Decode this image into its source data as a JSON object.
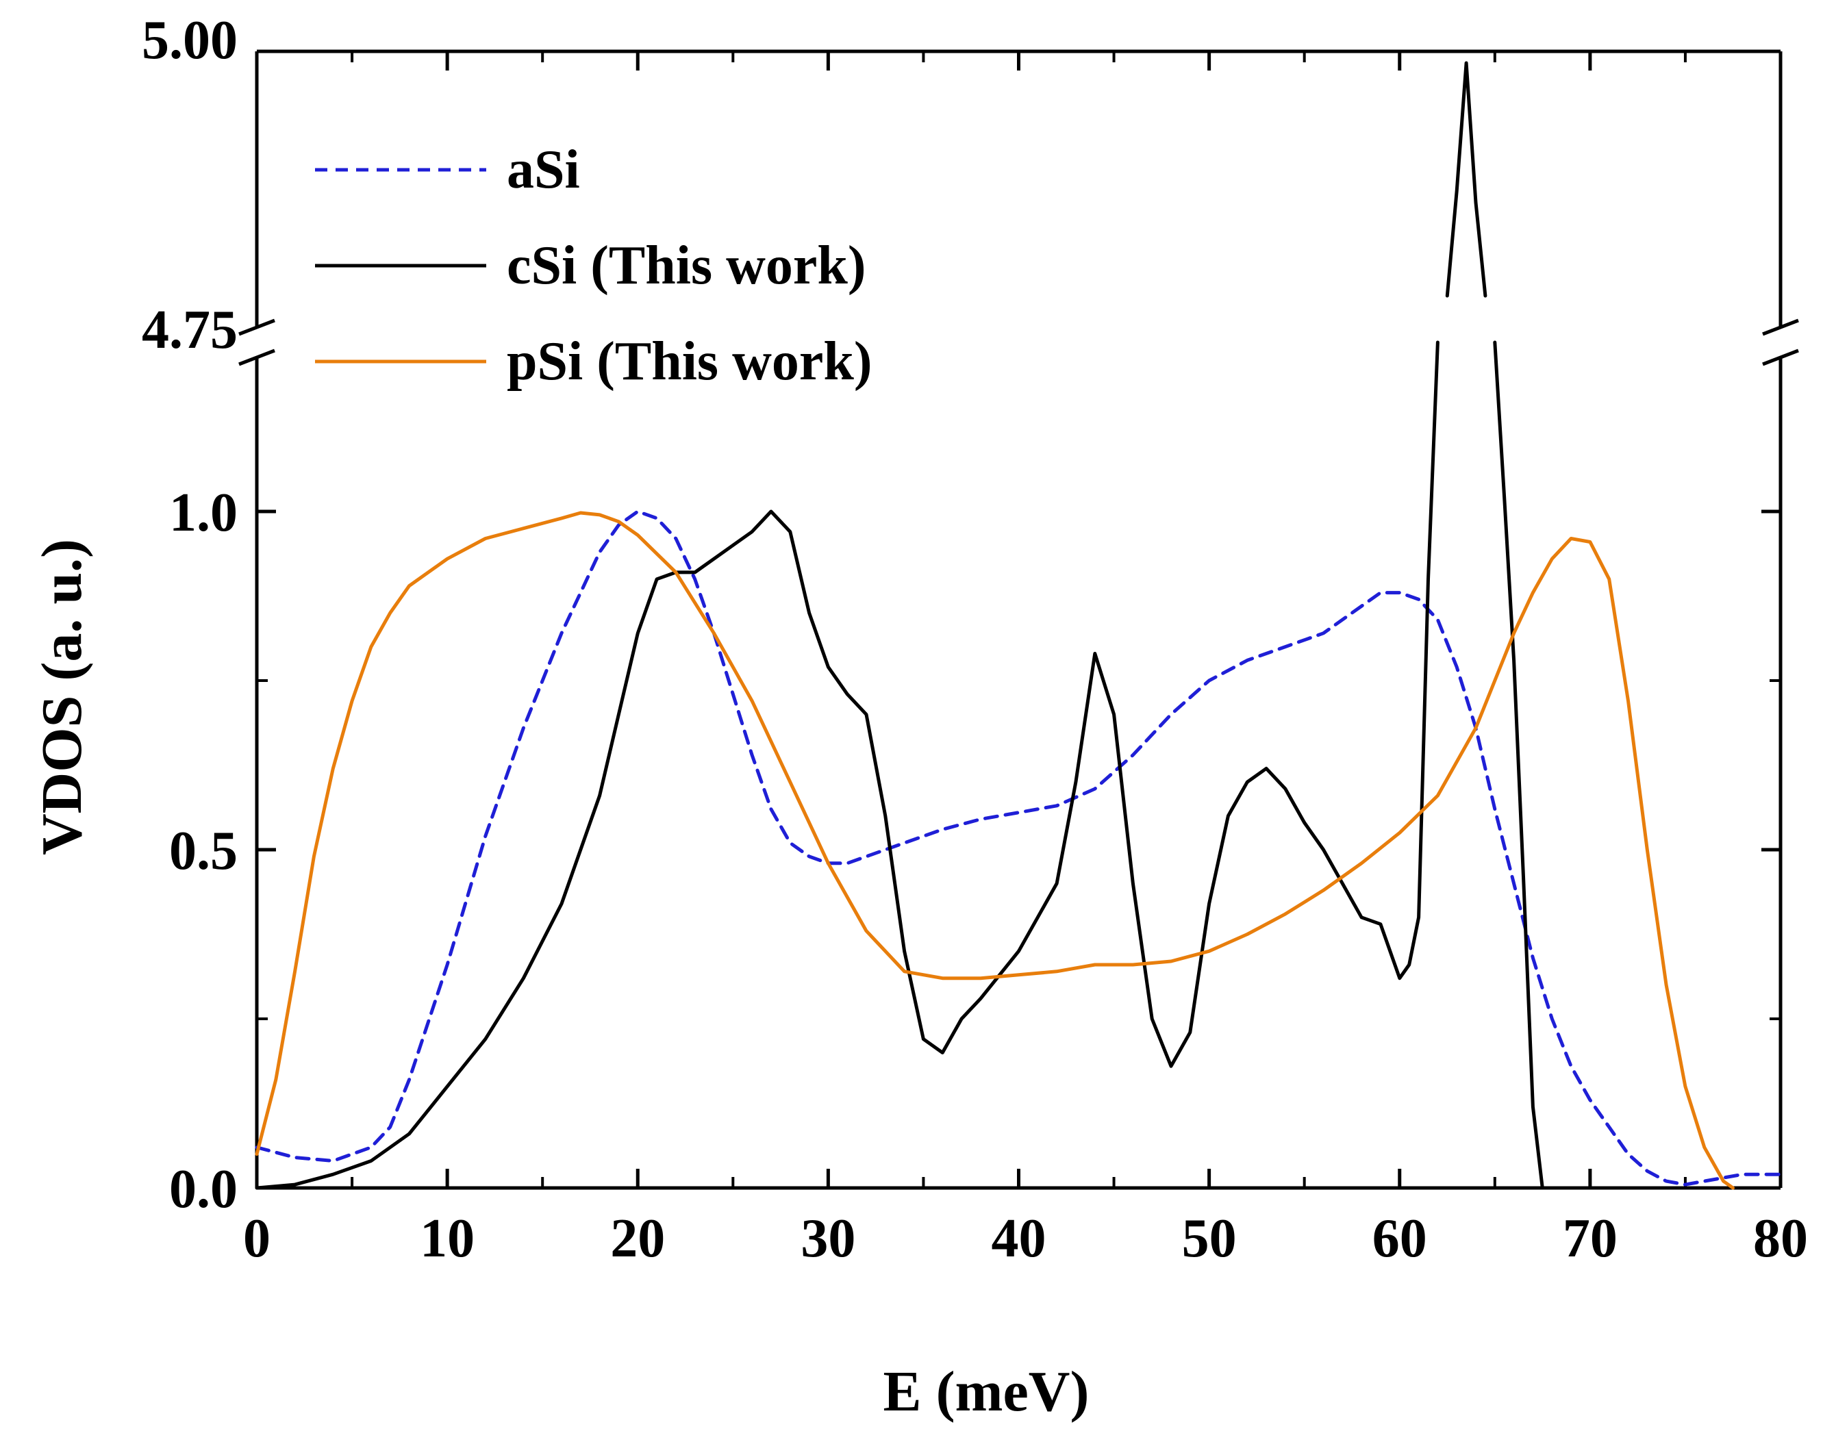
{
  "chart_data": {
    "type": "line",
    "title": "",
    "xlabel": "E (meV)",
    "ylabel": "VDOS (a. u.)",
    "xlim": [
      0,
      80
    ],
    "ylim_lower": [
      0,
      1.25
    ],
    "ylim_upper": [
      4.75,
      5.0
    ],
    "axis_break": {
      "from": 1.25,
      "to": 4.75
    },
    "x_ticks": [
      0,
      10,
      20,
      30,
      40,
      50,
      60,
      70,
      80
    ],
    "x_tick_labels": [
      "0",
      "10",
      "20",
      "30",
      "40",
      "50",
      "60",
      "70",
      "80"
    ],
    "y_ticks": [
      0.0,
      0.5,
      1.0,
      4.75,
      5.0
    ],
    "y_tick_labels": [
      "0.0",
      "0.5",
      "1.0",
      "4.75",
      "5.00"
    ],
    "legend_position": "top-left",
    "series": [
      {
        "name": "aSi",
        "color": "#1f1fd6",
        "style": "dashed",
        "x": [
          0,
          2,
          4,
          6,
          7,
          8,
          10,
          12,
          14,
          16,
          18,
          19,
          20,
          21,
          22,
          23,
          24,
          25,
          26,
          27,
          28,
          29,
          30,
          31,
          32,
          34,
          36,
          38,
          40,
          42,
          44,
          46,
          48,
          50,
          52,
          54,
          56,
          58,
          59,
          60,
          61,
          62,
          63,
          64,
          65,
          66,
          67,
          68,
          69,
          70,
          71,
          72,
          73,
          74,
          75,
          76,
          78,
          80
        ],
        "y": [
          0.06,
          0.045,
          0.04,
          0.06,
          0.09,
          0.16,
          0.33,
          0.52,
          0.68,
          0.82,
          0.94,
          0.98,
          1.0,
          0.99,
          0.96,
          0.9,
          0.82,
          0.73,
          0.64,
          0.56,
          0.51,
          0.49,
          0.48,
          0.48,
          0.49,
          0.51,
          0.53,
          0.545,
          0.555,
          0.565,
          0.59,
          0.64,
          0.7,
          0.75,
          0.78,
          0.8,
          0.82,
          0.86,
          0.88,
          0.88,
          0.87,
          0.84,
          0.77,
          0.68,
          0.56,
          0.45,
          0.34,
          0.25,
          0.18,
          0.13,
          0.09,
          0.05,
          0.025,
          0.01,
          0.005,
          0.01,
          0.02,
          0.02
        ]
      },
      {
        "name": "cSi (This work)",
        "color": "#000000",
        "style": "solid",
        "x": [
          0,
          2,
          4,
          6,
          8,
          10,
          12,
          14,
          16,
          18,
          19,
          20,
          21,
          22,
          23,
          24,
          25,
          26,
          27,
          28,
          29,
          30,
          31,
          32,
          33,
          34,
          35,
          36,
          37,
          38,
          40,
          42,
          43,
          44,
          45,
          46,
          47,
          48,
          49,
          50,
          51,
          52,
          53,
          54,
          55,
          56,
          57,
          58,
          59,
          60,
          60.5,
          61,
          61.5,
          62,
          62.5,
          63,
          63.5,
          64,
          64.5,
          65,
          65.5,
          66,
          66.5,
          67,
          67.5
        ],
        "y": [
          0.0,
          0.005,
          0.02,
          0.04,
          0.08,
          0.15,
          0.22,
          0.31,
          0.42,
          0.58,
          0.7,
          0.82,
          0.9,
          0.91,
          0.91,
          0.93,
          0.95,
          0.97,
          1.0,
          0.97,
          0.85,
          0.77,
          0.73,
          0.7,
          0.55,
          0.35,
          0.22,
          0.2,
          0.25,
          0.28,
          0.35,
          0.45,
          0.6,
          0.79,
          0.7,
          0.45,
          0.25,
          0.18,
          0.23,
          0.42,
          0.55,
          0.6,
          0.62,
          0.59,
          0.54,
          0.5,
          0.45,
          0.4,
          0.39,
          0.31,
          0.33,
          0.4,
          0.9,
          1.25,
          4.79,
          4.88,
          4.99,
          4.87,
          4.79,
          1.25,
          1.02,
          0.78,
          0.46,
          0.12,
          0.0
        ]
      },
      {
        "name": "pSi (This work)",
        "color": "#e87e0c",
        "style": "solid",
        "x": [
          0,
          1,
          2,
          3,
          4,
          5,
          6,
          7,
          8,
          10,
          12,
          14,
          16,
          17,
          18,
          19,
          20,
          22,
          24,
          26,
          28,
          30,
          32,
          34,
          36,
          38,
          40,
          42,
          44,
          46,
          48,
          50,
          52,
          54,
          56,
          58,
          60,
          62,
          64,
          66,
          67,
          68,
          69,
          70,
          71,
          72,
          73,
          74,
          75,
          76,
          77,
          77.5
        ],
        "y": [
          0.05,
          0.16,
          0.32,
          0.49,
          0.62,
          0.72,
          0.8,
          0.85,
          0.89,
          0.93,
          0.96,
          0.975,
          0.99,
          0.998,
          0.995,
          0.985,
          0.965,
          0.91,
          0.82,
          0.72,
          0.6,
          0.48,
          0.38,
          0.32,
          0.31,
          0.31,
          0.315,
          0.32,
          0.33,
          0.33,
          0.335,
          0.35,
          0.375,
          0.405,
          0.44,
          0.48,
          0.525,
          0.58,
          0.68,
          0.82,
          0.88,
          0.93,
          0.96,
          0.955,
          0.9,
          0.72,
          0.5,
          0.3,
          0.15,
          0.06,
          0.01,
          0.0
        ]
      }
    ]
  }
}
